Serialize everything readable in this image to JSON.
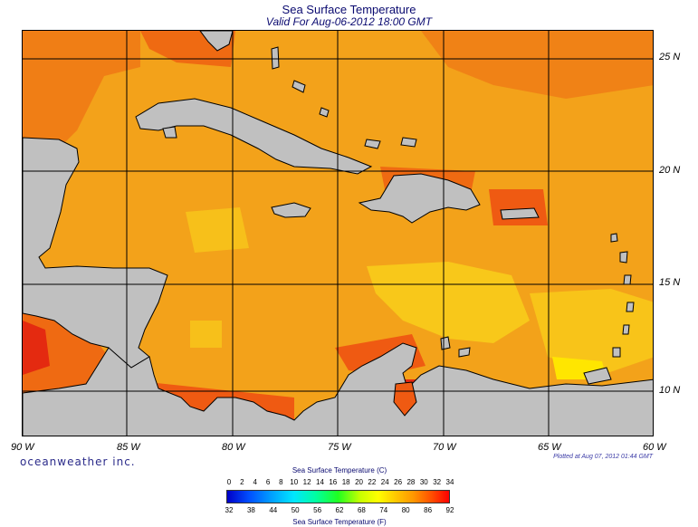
{
  "title": "Sea Surface Temperature",
  "subtitle": "Valid For Aug-06-2012 18:00 GMT",
  "lat_labels": [
    "25 N",
    "20 N",
    "15 N",
    "10 N"
  ],
  "lon_labels": [
    "90 W",
    "85 W",
    "80 W",
    "75 W",
    "70 W",
    "65 W",
    "60 W"
  ],
  "brand": "oceanweather inc.",
  "plotted": "Plotted at Aug 07, 2012 01:44 GMT",
  "legend": {
    "title_c": "Sea Surface Temperature (C)",
    "title_f": "Sea Surface Temperature (F)",
    "celsius_ticks": [
      "0",
      "2",
      "4",
      "6",
      "8",
      "10",
      "12",
      "14",
      "16",
      "18",
      "20",
      "22",
      "24",
      "26",
      "28",
      "30",
      "32",
      "34"
    ],
    "fahrenheit_ticks": [
      "32",
      "38",
      "44",
      "50",
      "56",
      "62",
      "68",
      "74",
      "80",
      "86",
      "92"
    ]
  },
  "colors": {
    "ocean_base": "#f3a21a",
    "ocean_warm": "#ef6a12",
    "ocean_hot": "#e42a10",
    "ocean_cool": "#f8c81a",
    "land": "#c0c0c0"
  }
}
